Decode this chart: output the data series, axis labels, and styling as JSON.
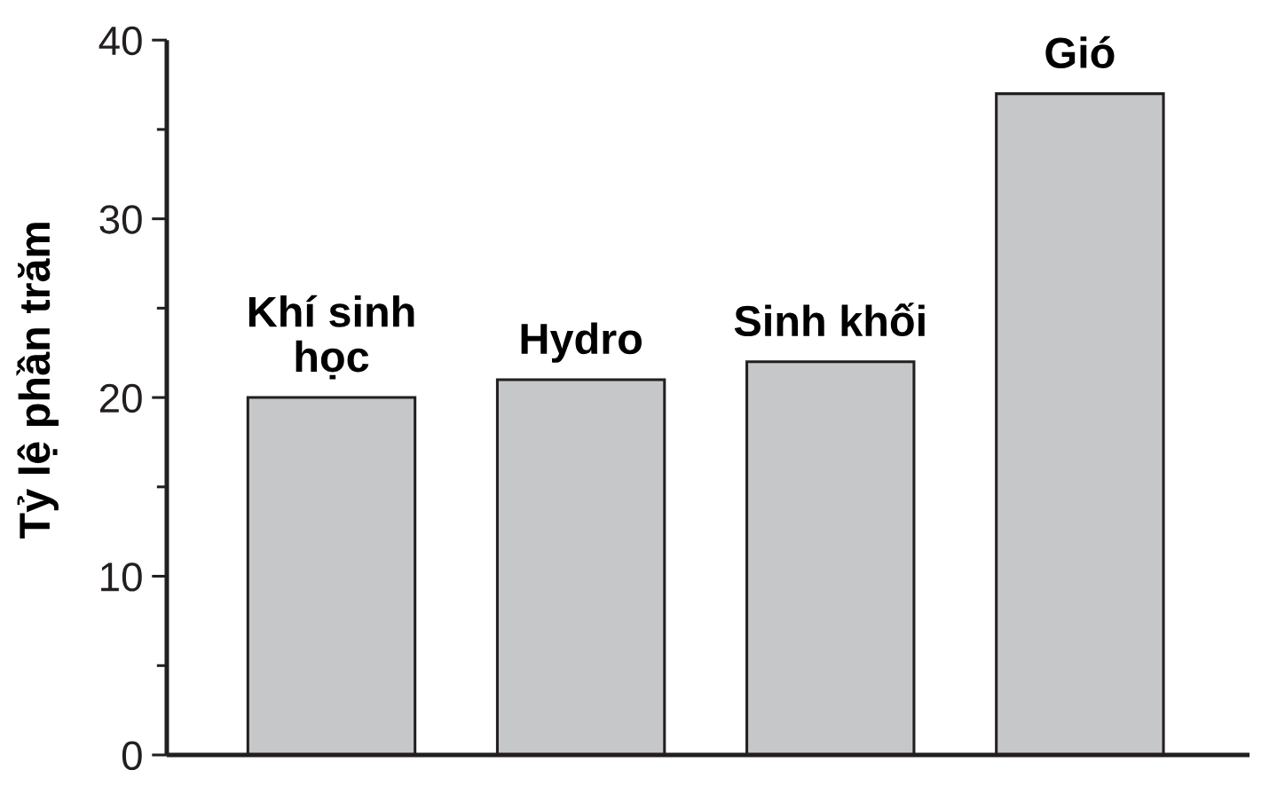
{
  "chart_data": {
    "type": "bar",
    "ylabel": "Tỷ lệ phần trăm",
    "categories": [
      "Khí sinh học",
      "Hydro",
      "Sinh khối",
      "Gió"
    ],
    "values": [
      20,
      21,
      22,
      37
    ],
    "color": "#c6c7c9",
    "ylim": [
      0,
      40
    ],
    "yticks": [
      0,
      {
        "value": 5,
        "label": null
      },
      10,
      {
        "value": 15,
        "label": null
      },
      20,
      {
        "value": 25,
        "label": null
      },
      30,
      {
        "value": 35,
        "label": null
      },
      40
    ]
  }
}
